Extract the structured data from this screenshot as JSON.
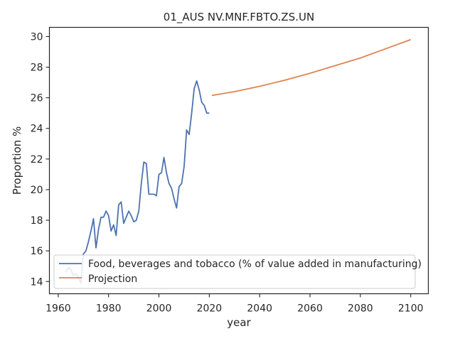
{
  "chart_data": {
    "type": "line",
    "title": "01_AUS NV.MNF.FBTO.ZS.UN",
    "xlabel": "year",
    "ylabel": "Proportion %",
    "xlim": [
      1956.5,
      2107
    ],
    "ylim": [
      13.2,
      30.6
    ],
    "xticks": [
      1960,
      1980,
      2000,
      2020,
      2040,
      2060,
      2080,
      2100
    ],
    "yticks": [
      14,
      16,
      18,
      20,
      22,
      24,
      26,
      28,
      30
    ],
    "grid": false,
    "legend_position": "lower-left",
    "series": [
      {
        "name": "Food, beverages and tobacco (% of value added in manufacturing)",
        "color": "#4c72b0",
        "x": [
          1963,
          1964,
          1965,
          1966,
          1967,
          1968,
          1969,
          1970,
          1971,
          1972,
          1973,
          1974,
          1975,
          1976,
          1977,
          1978,
          1979,
          1980,
          1981,
          1982,
          1983,
          1984,
          1985,
          1986,
          1987,
          1988,
          1989,
          1990,
          1991,
          1992,
          1993,
          1994,
          1995,
          1996,
          1997,
          1998,
          1999,
          2000,
          2001,
          2002,
          2003,
          2004,
          2005,
          2006,
          2007,
          2008,
          2009,
          2010,
          2011,
          2012,
          2013,
          2014,
          2015,
          2016,
          2017,
          2018,
          2019,
          2020
        ],
        "y": [
          14.6,
          14.9,
          14.8,
          14.4,
          14.5,
          14.3,
          13.9,
          15.8,
          16.0,
          16.6,
          17.3,
          18.1,
          16.2,
          17.4,
          18.2,
          18.2,
          18.6,
          18.3,
          17.3,
          17.7,
          17.0,
          19.0,
          19.2,
          17.8,
          18.2,
          18.6,
          18.3,
          17.9,
          18.0,
          18.6,
          20.4,
          21.8,
          21.7,
          19.7,
          19.7,
          19.7,
          19.6,
          21.0,
          21.1,
          22.1,
          21.1,
          20.4,
          20.1,
          19.4,
          18.8,
          20.2,
          20.4,
          21.5,
          23.9,
          23.6,
          25.0,
          26.6,
          27.1,
          26.5,
          25.7,
          25.5,
          25.0,
          25.0
        ]
      },
      {
        "name": "Projection",
        "color": "#dd8452",
        "x": [
          2021,
          2030,
          2040,
          2050,
          2060,
          2070,
          2080,
          2090,
          2100
        ],
        "y": [
          26.15,
          26.4,
          26.75,
          27.15,
          27.6,
          28.1,
          28.6,
          29.2,
          29.8
        ]
      }
    ]
  }
}
